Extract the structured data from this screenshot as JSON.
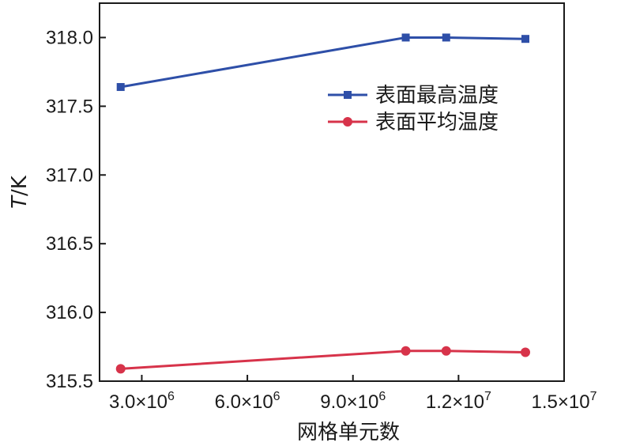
{
  "chart_data": {
    "type": "line",
    "title": "",
    "xlabel": "网格单元数",
    "ylabel_italic": "T",
    "ylabel_unit": "/K",
    "xlim": [
      1800000,
      15000000
    ],
    "ylim": [
      315.5,
      318.25
    ],
    "x_ticks": [
      {
        "value": 3000000,
        "mantissa": "3.0×10",
        "exp": "6"
      },
      {
        "value": 6000000,
        "mantissa": "6.0×10",
        "exp": "6"
      },
      {
        "value": 9000000,
        "mantissa": "9.0×10",
        "exp": "6"
      },
      {
        "value": 12000000,
        "mantissa": "1.2×10",
        "exp": "7"
      },
      {
        "value": 15000000,
        "mantissa": "1.5×10",
        "exp": "7"
      }
    ],
    "y_ticks": [
      {
        "value": 315.5,
        "label": "315.5"
      },
      {
        "value": 316.0,
        "label": "316.0"
      },
      {
        "value": 316.5,
        "label": "316.5"
      },
      {
        "value": 317.0,
        "label": "317.0"
      },
      {
        "value": 317.5,
        "label": "317.5"
      },
      {
        "value": 318.0,
        "label": "318.0"
      }
    ],
    "x": [
      2400000,
      10500000,
      11650000,
      13900000
    ],
    "series": [
      {
        "name": "表面最高温度",
        "color": "#2e4fa8",
        "marker": "square",
        "values": [
          317.64,
          318.0,
          318.0,
          317.99
        ]
      },
      {
        "name": "表面平均温度",
        "color": "#d7334a",
        "marker": "circle",
        "values": [
          315.59,
          315.72,
          315.72,
          315.71
        ]
      }
    ],
    "grid": false,
    "legend_position": "upper-right"
  }
}
